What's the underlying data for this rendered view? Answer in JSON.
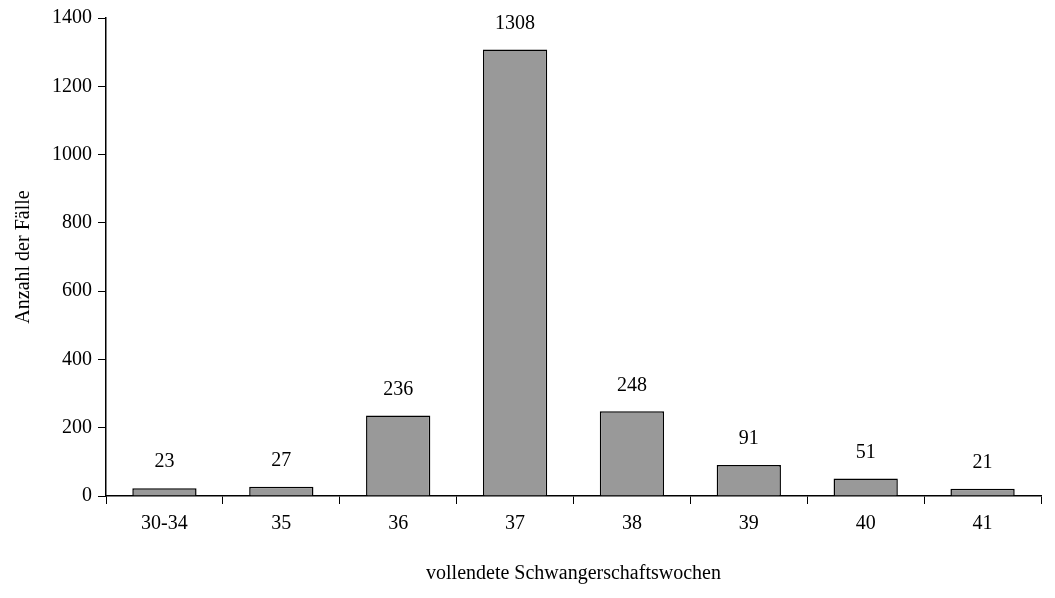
{
  "chart_data": {
    "type": "bar",
    "xlabel": "vollendete Schwangerschaftswochen",
    "ylabel": "Anzahl der Fälle",
    "categories": [
      "30-34",
      "35",
      "36",
      "37",
      "38",
      "39",
      "40",
      "41"
    ],
    "values": [
      23,
      27,
      236,
      1308,
      248,
      91,
      51,
      21
    ],
    "color": "#999999",
    "ylim": [
      0,
      1400
    ],
    "yticks": [
      0,
      200,
      400,
      600,
      800,
      1000,
      1200,
      1400
    ],
    "data_labels": true,
    "grid": false,
    "legend": false
  }
}
